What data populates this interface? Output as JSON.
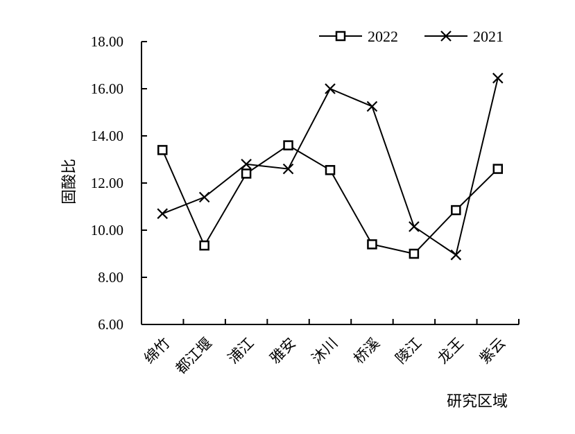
{
  "chart_data": {
    "type": "line",
    "xlabel": "研究区域",
    "ylabel": "固酸比",
    "ylim": [
      6.0,
      18.0
    ],
    "yticks": [
      "6.00",
      "8.00",
      "10.00",
      "12.00",
      "14.00",
      "16.00",
      "18.00"
    ],
    "categories": [
      "绵竹",
      "都江堰",
      "浦江",
      "雅安",
      "沐川",
      "桥溪",
      "陵江",
      "龙王",
      "紫云"
    ],
    "series": [
      {
        "name": "2022",
        "marker": "square",
        "values": [
          13.4,
          9.35,
          12.4,
          13.6,
          12.55,
          9.4,
          9.0,
          10.85,
          12.6
        ]
      },
      {
        "name": "2021",
        "marker": "x",
        "values": [
          10.7,
          11.4,
          12.8,
          12.6,
          16.0,
          15.25,
          10.15,
          8.95,
          16.45
        ]
      }
    ],
    "legend_position": "top-right",
    "grid": false,
    "colors": {
      "line": "#000000",
      "background": "#ffffff"
    }
  }
}
